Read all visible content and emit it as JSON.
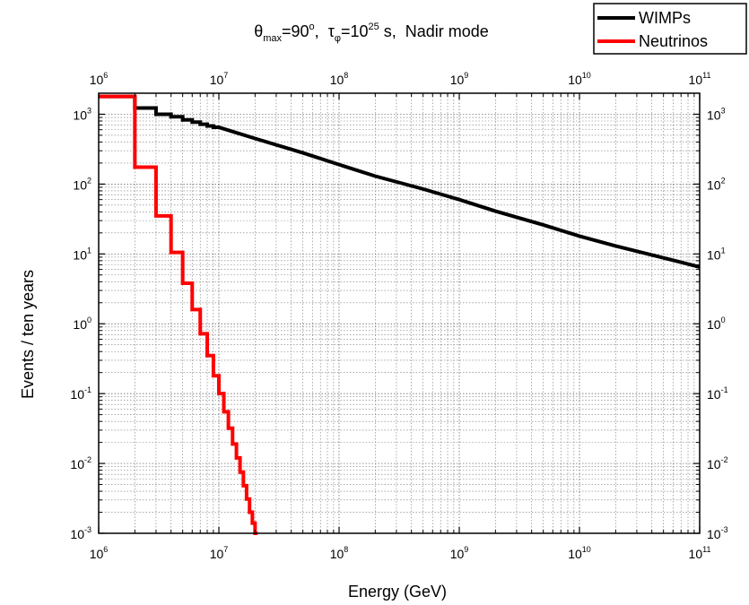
{
  "chart_data": {
    "type": "line",
    "title": {
      "theta": "θ",
      "theta_sub": "max",
      "theta_eq": "=90",
      "theta_sup": "o",
      "sep": ",  ",
      "tau": "τ",
      "tau_sub": "φ",
      "tau_eq": "=10",
      "tau_sup": "25",
      "tail": " s,  Nadir mode"
    },
    "xlabel": "Energy (GeV)",
    "ylabel": "Events / ten years",
    "xscale": "log",
    "yscale": "log",
    "xlim": [
      1000000,
      100000000000
    ],
    "ylim": [
      0.001,
      2000
    ],
    "grid": true,
    "minor_ticks": true,
    "x_tick_exponents": [
      6,
      7,
      8,
      9,
      10,
      11
    ],
    "y_tick_exponents": [
      -3,
      -2,
      -1,
      0,
      1,
      2,
      3
    ],
    "tick_base": "10",
    "legend_position": "top-right",
    "series": [
      {
        "name": "WIMPs",
        "color": "#000000",
        "drawstyle": "steps",
        "points": [
          [
            1000000,
            1800
          ],
          [
            2000000,
            1800
          ],
          [
            2000000,
            1230
          ],
          [
            3000000,
            1230
          ],
          [
            3000000,
            1000
          ],
          [
            4000000,
            1000
          ],
          [
            4000000,
            920
          ],
          [
            5000000,
            920
          ],
          [
            5000000,
            830
          ],
          [
            6000000,
            830
          ],
          [
            6000000,
            770
          ],
          [
            7000000,
            770
          ],
          [
            7000000,
            720
          ],
          [
            8000000,
            720
          ],
          [
            8000000,
            680
          ],
          [
            9000000,
            680
          ],
          [
            9000000,
            650
          ],
          [
            10000000,
            650
          ],
          [
            20000000,
            450
          ],
          [
            50000000,
            280
          ],
          [
            100000000,
            190
          ],
          [
            200000000,
            130
          ],
          [
            500000000,
            85
          ],
          [
            1000000000,
            60
          ],
          [
            2000000000,
            41
          ],
          [
            5000000000,
            26
          ],
          [
            10000000000,
            18
          ],
          [
            20000000000,
            13
          ],
          [
            50000000000,
            8.8
          ],
          [
            100000000000,
            6.5
          ]
        ]
      },
      {
        "name": "Neutrinos",
        "color": "#ff0000",
        "drawstyle": "steps",
        "points": [
          [
            1000000,
            1800
          ],
          [
            2000000,
            1800
          ],
          [
            2000000,
            175
          ],
          [
            3000000,
            175
          ],
          [
            3000000,
            35
          ],
          [
            4000000,
            35
          ],
          [
            4000000,
            10.5
          ],
          [
            5000000,
            10.5
          ],
          [
            5000000,
            3.8
          ],
          [
            6000000,
            3.8
          ],
          [
            6000000,
            1.6
          ],
          [
            7000000,
            1.6
          ],
          [
            7000000,
            0.72
          ],
          [
            8000000,
            0.72
          ],
          [
            8000000,
            0.35
          ],
          [
            9000000,
            0.35
          ],
          [
            9000000,
            0.18
          ],
          [
            10000000,
            0.18
          ],
          [
            10000000,
            0.1
          ],
          [
            11000000,
            0.1
          ],
          [
            11000000,
            0.055
          ],
          [
            12000000,
            0.055
          ],
          [
            12000000,
            0.032
          ],
          [
            13000000,
            0.032
          ],
          [
            13000000,
            0.019
          ],
          [
            14000000,
            0.019
          ],
          [
            14000000,
            0.012
          ],
          [
            15000000,
            0.012
          ],
          [
            15000000,
            0.0075
          ],
          [
            16000000,
            0.0075
          ],
          [
            16000000,
            0.0048
          ],
          [
            17000000,
            0.0048
          ],
          [
            17000000,
            0.0031
          ],
          [
            18000000,
            0.0031
          ],
          [
            18000000,
            0.002
          ],
          [
            19000000,
            0.002
          ],
          [
            19000000,
            0.0014
          ],
          [
            20000000,
            0.0014
          ],
          [
            20000000,
            0.001
          ],
          [
            21000000,
            0.001
          ]
        ]
      }
    ]
  }
}
